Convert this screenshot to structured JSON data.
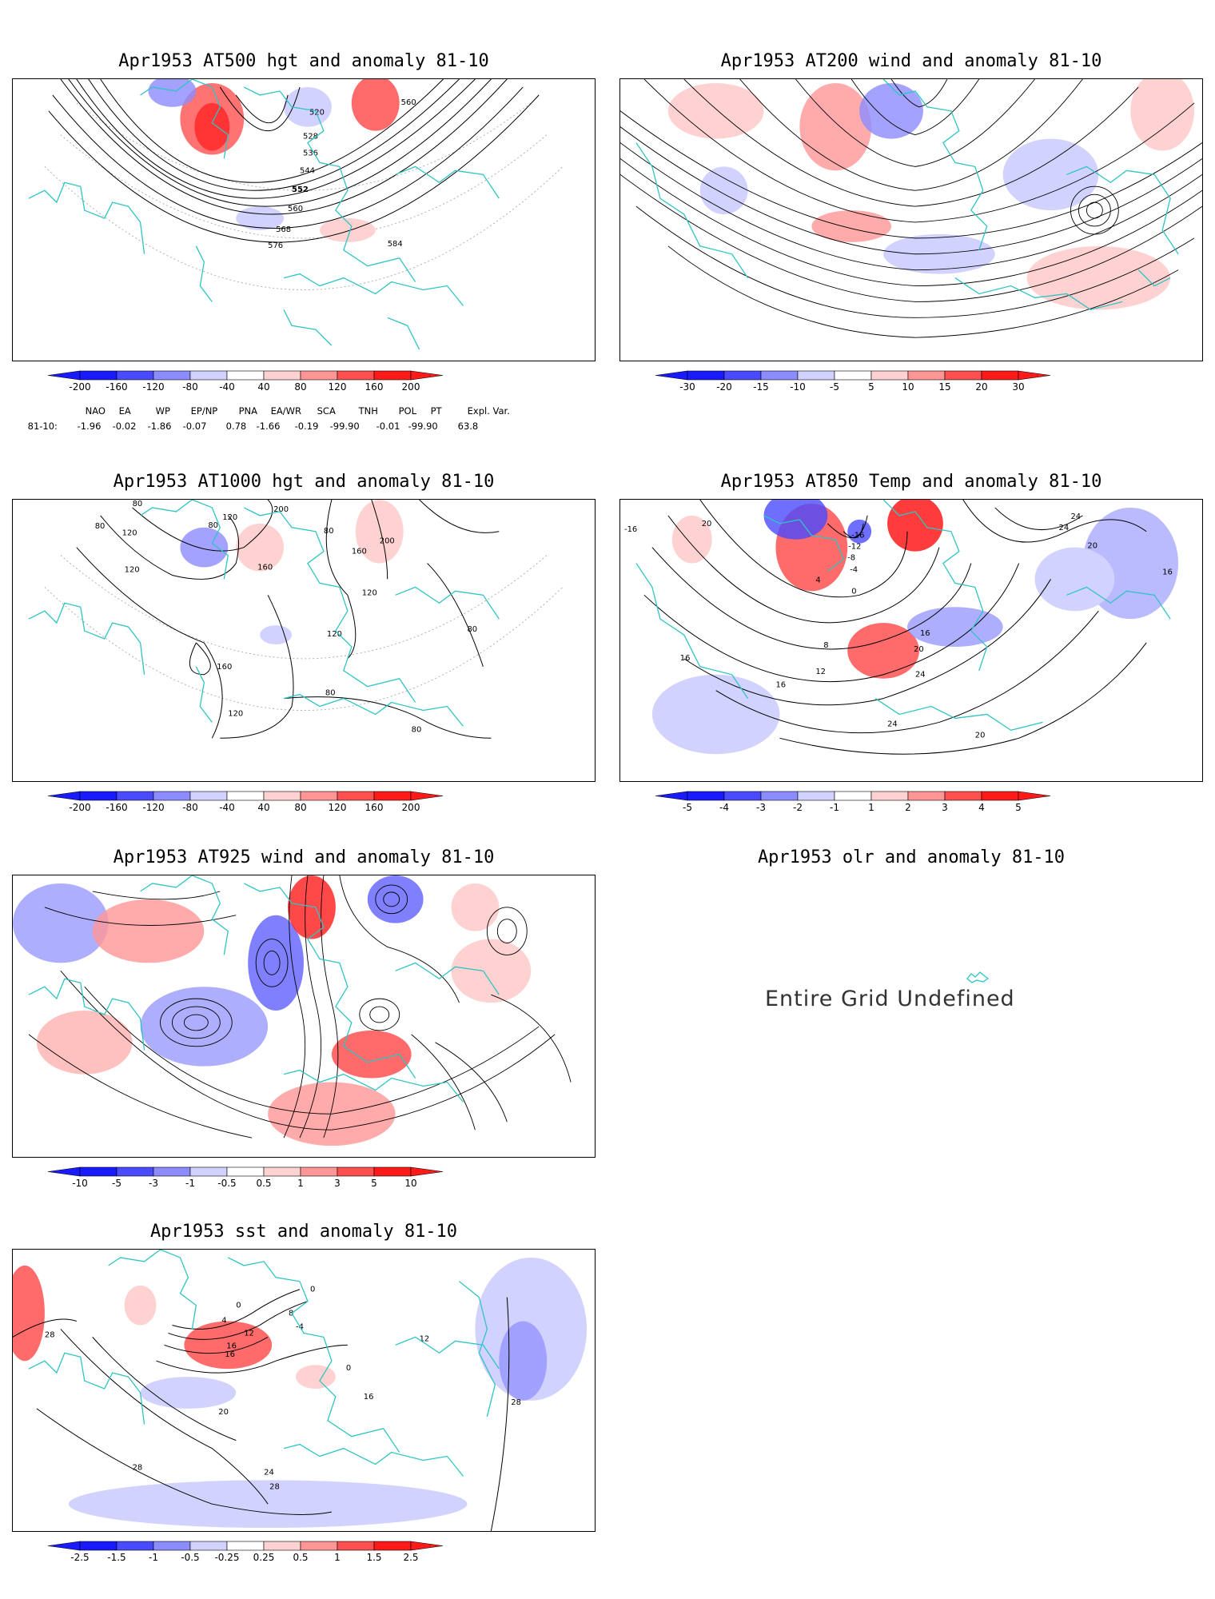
{
  "colors": {
    "coast": "#2ec4c4",
    "contour": "#000000",
    "grid": "#b0b0b0",
    "blue_dark": "#1a1aff",
    "blue_mid": "#4a4aff",
    "blue_light": "#8c8cff",
    "blue_pale": "#d2d2ff",
    "red_pale": "#ffd2d2",
    "red_light": "#ff9696",
    "red_mid": "#ff5050",
    "red_dark": "#ff1a1a"
  },
  "panels": [
    {
      "id": "p500",
      "title": "Apr1953 AT500 hgt and anomaly 81-10",
      "kind": "contour",
      "contour_labels": [
        "520",
        "528",
        "536",
        "544",
        "552",
        "560",
        "568",
        "576",
        "584",
        "560"
      ],
      "colorbar_labels": [
        "-200",
        "-160",
        "-120",
        "-80",
        "-40",
        "40",
        "80",
        "120",
        "160",
        "200"
      ]
    },
    {
      "id": "p200",
      "title": "Apr1953 AT200 wind and anomaly 81-10",
      "kind": "stream",
      "contour_labels": [],
      "colorbar_labels": [
        "-30",
        "-20",
        "-15",
        "-10",
        "-5",
        "5",
        "10",
        "15",
        "20",
        "30"
      ]
    },
    {
      "id": "p1000",
      "title": "Apr1953 AT1000 hgt and anomaly 81-10",
      "kind": "contour",
      "contour_labels": [
        "80",
        "120",
        "80",
        "120",
        "200",
        "160",
        "80",
        "160",
        "200",
        "80",
        "120",
        "120",
        "120",
        "160",
        "80",
        "120",
        "80",
        "80"
      ],
      "colorbar_labels": [
        "-200",
        "-160",
        "-120",
        "-80",
        "-40",
        "40",
        "80",
        "120",
        "160",
        "200"
      ]
    },
    {
      "id": "p850",
      "title": "Apr1953 AT850 Temp and anomaly 81-10",
      "kind": "contour",
      "contour_labels": [
        "-16",
        "20",
        "-16",
        "-12",
        "-8",
        "-4",
        "4",
        "0",
        "8",
        "16",
        "20",
        "12",
        "16",
        "24",
        "24",
        "20",
        "16",
        "24",
        "20",
        "24",
        "16"
      ],
      "colorbar_labels": [
        "-5",
        "-4",
        "-3",
        "-2",
        "-1",
        "1",
        "2",
        "3",
        "4",
        "5"
      ]
    },
    {
      "id": "p925",
      "title": "Apr1953 AT925 wind and anomaly 81-10",
      "kind": "stream",
      "contour_labels": [],
      "colorbar_labels": [
        "-10",
        "-5",
        "-3",
        "-1",
        "-0.5",
        "0.5",
        "1",
        "3",
        "5",
        "10"
      ]
    },
    {
      "id": "polr",
      "title": "Apr1953 olr and anomaly 81-10",
      "kind": "undefined",
      "message": "Entire Grid Undefined"
    },
    {
      "id": "psst",
      "title": "Apr1953 sst and anomaly 81-10",
      "kind": "contour",
      "contour_labels": [
        "28",
        "0",
        "4",
        "8",
        "12",
        "16",
        "-4",
        "0",
        "16",
        "16",
        "12",
        "20",
        "24",
        "28",
        "28",
        "28",
        "0"
      ],
      "colorbar_labels": [
        "-2.5",
        "-1.5",
        "-1",
        "-0.5",
        "-0.25",
        "0.25",
        "0.5",
        "1",
        "1.5",
        "2.5"
      ]
    }
  ],
  "teleconnection_indices": {
    "headers": [
      "NAO",
      "EA",
      "WP",
      "EP/NP",
      "PNA",
      "EA/WR",
      "SCA",
      "TNH",
      "POL",
      "PT",
      "Expl. Var."
    ],
    "row_label": "81-10:",
    "values": [
      "-1.96",
      "-0.02",
      "-1.86",
      "-0.07",
      "0.78",
      "-1.66",
      "-0.19",
      "-99.90",
      "-0.01",
      "-99.90",
      "63.8"
    ]
  }
}
